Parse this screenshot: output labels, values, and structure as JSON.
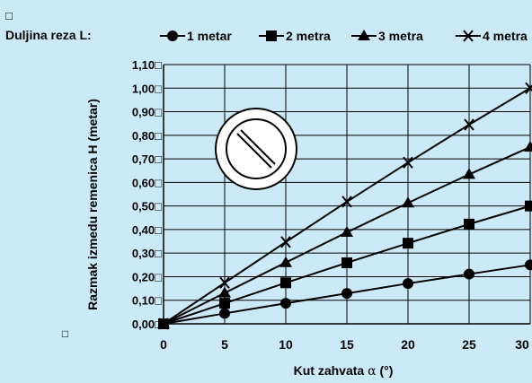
{
  "chart_data": {
    "type": "line",
    "top_glyph": "□",
    "legend_title": "Duljina reza L:",
    "xlabel_prefix": "Kut zahvata ",
    "xlabel_symbol": "α",
    "xlabel_suffix": " (°)",
    "ylabel": "Razmak izmedu remenica H (metar)",
    "ylabel_glyph": "□",
    "x": [
      0,
      5,
      10,
      15,
      20,
      25,
      30
    ],
    "x_tick_labels": [
      "0",
      "5",
      "10",
      "15",
      "20",
      "25",
      "30"
    ],
    "y_tick_labels": [
      "0,00",
      "0,10",
      "0,20",
      "0,30",
      "0,40",
      "0,50",
      "0,60",
      "0,70",
      "0,80",
      "0,90",
      "1,00",
      "1,10"
    ],
    "y_tick_suffix": "□",
    "xlim": [
      0,
      30
    ],
    "ylim": [
      0,
      1.1
    ],
    "grid": true,
    "legend_position": "top",
    "line_color": "#000000",
    "series": [
      {
        "name": "1 metar",
        "marker": "circle",
        "values": [
          0,
          0.044,
          0.087,
          0.129,
          0.171,
          0.211,
          0.25
        ]
      },
      {
        "name": "2 metra",
        "marker": "square",
        "values": [
          0,
          0.087,
          0.174,
          0.259,
          0.342,
          0.423,
          0.5
        ]
      },
      {
        "name": "3 metra",
        "marker": "triangle",
        "values": [
          0,
          0.131,
          0.26,
          0.388,
          0.513,
          0.634,
          0.75
        ]
      },
      {
        "name": "4 metra",
        "marker": "cross",
        "values": [
          0,
          0.174,
          0.347,
          0.518,
          0.684,
          0.845,
          1.0
        ]
      }
    ],
    "prohibition_icon": "no-entry-icon"
  }
}
